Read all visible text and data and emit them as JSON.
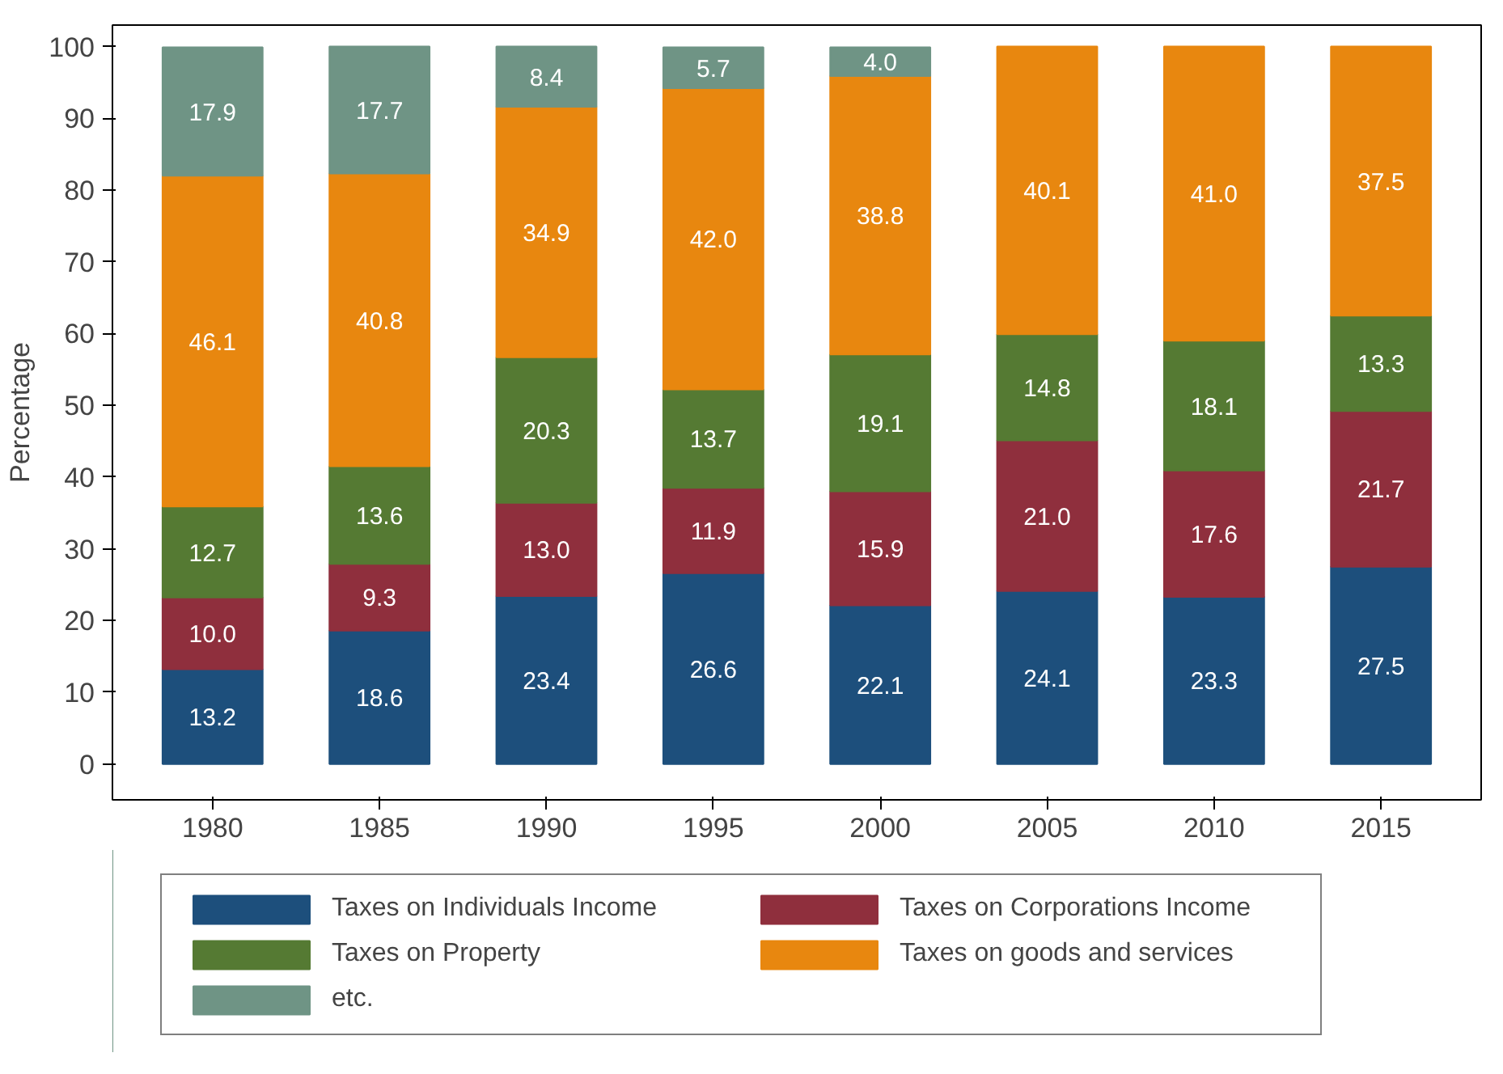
{
  "chart_data": {
    "type": "bar",
    "stacked": true,
    "ylabel": "Percentage",
    "categories": [
      "1980",
      "1985",
      "1990",
      "1995",
      "2000",
      "2005",
      "2010",
      "2015"
    ],
    "series": [
      {
        "name": "Taxes on Individuals Income",
        "color": "#1d4f7c",
        "values": [
          13.2,
          18.6,
          23.4,
          26.6,
          22.1,
          24.1,
          23.3,
          27.5
        ]
      },
      {
        "name": "Taxes on Corporations Income",
        "color": "#8f2f3d",
        "values": [
          10.0,
          9.3,
          13.0,
          11.9,
          15.9,
          21.0,
          17.6,
          21.7
        ]
      },
      {
        "name": "Taxes on Property",
        "color": "#557a33",
        "values": [
          12.7,
          13.6,
          20.3,
          13.7,
          19.1,
          14.8,
          18.1,
          13.3
        ]
      },
      {
        "name": "Taxes on goods and services",
        "color": "#e8870f",
        "values": [
          46.1,
          40.8,
          34.9,
          42.0,
          38.8,
          40.1,
          41.0,
          37.5
        ]
      },
      {
        "name": "etc.",
        "color": "#6f9485",
        "values": [
          17.9,
          17.7,
          8.4,
          5.7,
          4.0,
          null,
          null,
          null
        ]
      }
    ],
    "ylim": [
      -5,
      103
    ],
    "yticks": [
      0,
      10,
      20,
      30,
      40,
      50,
      60,
      70,
      80,
      90,
      100
    ],
    "grid": false,
    "legend": "bottom",
    "value_labels": [
      [
        "13.2",
        "18.6",
        "23.4",
        "26.6",
        "22.1",
        "24.1",
        "23.3",
        "27.5"
      ],
      [
        "10.0",
        "9.3",
        "13.0",
        "11.9",
        "15.9",
        "21.0",
        "17.6",
        "21.7"
      ],
      [
        "12.7",
        "13.6",
        "20.3",
        "13.7",
        "19.1",
        "14.8",
        "18.1",
        "13.3"
      ],
      [
        "46.1",
        "40.8",
        "34.9",
        "42.0",
        "38.8",
        "40.1",
        "41.0",
        "37.5"
      ],
      [
        "17.9",
        "17.7",
        "8.4",
        "5.7",
        "4.0",
        null,
        null,
        null
      ]
    ]
  }
}
